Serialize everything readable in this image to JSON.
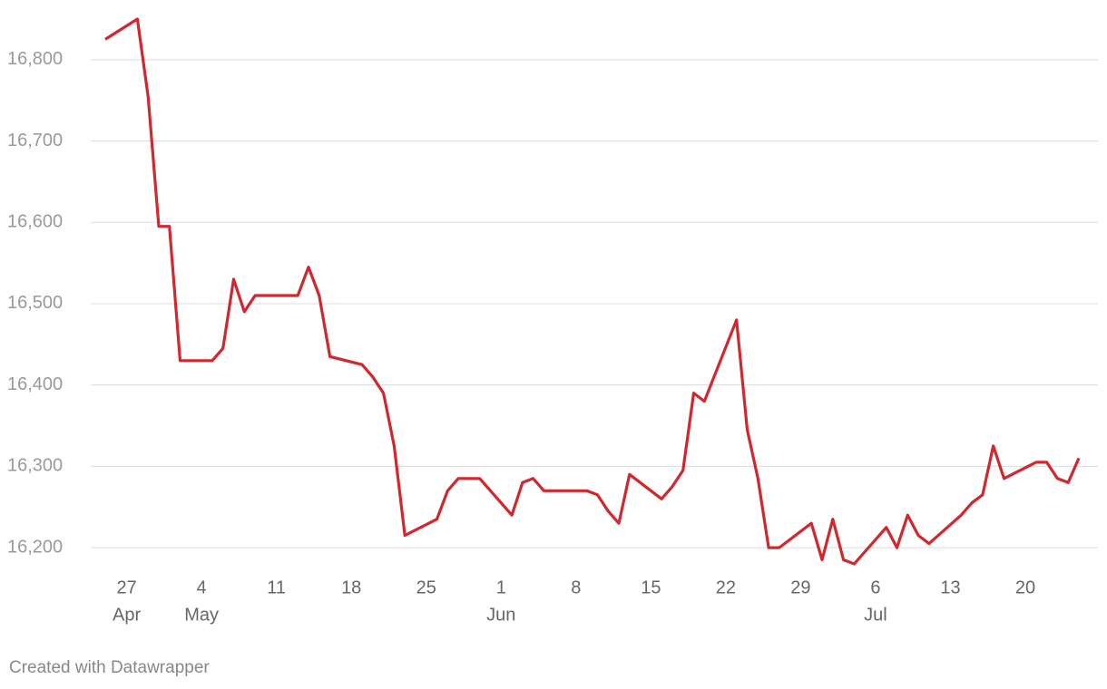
{
  "chart_data": {
    "type": "line",
    "color": "#d0282e",
    "grid": true,
    "x": [
      "04-25",
      "04-28",
      "04-29",
      "04-30",
      "05-01",
      "05-02",
      "05-05",
      "05-06",
      "05-07",
      "05-08",
      "05-09",
      "05-13",
      "05-14",
      "05-15",
      "05-16",
      "05-19",
      "05-20",
      "05-21",
      "05-22",
      "05-23",
      "05-26",
      "05-27",
      "05-28",
      "05-30",
      "06-02",
      "06-03",
      "06-04",
      "06-05",
      "06-09",
      "06-10",
      "06-11",
      "06-12",
      "06-13",
      "06-16",
      "06-17",
      "06-18",
      "06-19",
      "06-20",
      "06-23",
      "06-24",
      "06-25",
      "06-26",
      "06-27",
      "06-30",
      "07-01",
      "07-02",
      "07-03",
      "07-04",
      "07-07",
      "07-08",
      "07-09",
      "07-10",
      "07-11",
      "07-14",
      "07-15",
      "07-16",
      "07-17",
      "07-18",
      "07-21",
      "07-22",
      "07-23",
      "07-24",
      "07-25"
    ],
    "values": [
      16825,
      16850,
      16755,
      16595,
      16595,
      16430,
      16430,
      16445,
      16530,
      16490,
      16510,
      16510,
      16545,
      16510,
      16435,
      16425,
      16410,
      16390,
      16325,
      16215,
      16235,
      16270,
      16285,
      16285,
      16240,
      16280,
      16285,
      16270,
      16270,
      16265,
      16245,
      16230,
      16290,
      16260,
      16275,
      16295,
      16390,
      16380,
      16480,
      16345,
      16285,
      16200,
      16200,
      16230,
      16185,
      16235,
      16185,
      16180,
      16225,
      16200,
      16240,
      16215,
      16205,
      16240,
      16255,
      16265,
      16325,
      16285,
      16305,
      16305,
      16285,
      16280,
      16310
    ],
    "xlim": [
      "04-25",
      "07-25"
    ],
    "xticks": [
      {
        "value": "04-27",
        "label": "27",
        "month": "Apr"
      },
      {
        "value": "05-04",
        "label": "4",
        "month": "May"
      },
      {
        "value": "05-11",
        "label": "11"
      },
      {
        "value": "05-18",
        "label": "18"
      },
      {
        "value": "05-25",
        "label": "25"
      },
      {
        "value": "06-01",
        "label": "1",
        "month": "Jun"
      },
      {
        "value": "06-08",
        "label": "8"
      },
      {
        "value": "06-15",
        "label": "15"
      },
      {
        "value": "06-22",
        "label": "22"
      },
      {
        "value": "06-29",
        "label": "29"
      },
      {
        "value": "07-06",
        "label": "6",
        "month": "Jul"
      },
      {
        "value": "07-13",
        "label": "13"
      },
      {
        "value": "07-20",
        "label": "20"
      }
    ],
    "ylim": [
      16170,
      16860
    ],
    "yticks": [
      {
        "value": 16200,
        "label": "16,200"
      },
      {
        "value": 16300,
        "label": "16,300"
      },
      {
        "value": 16400,
        "label": "16,400"
      },
      {
        "value": 16500,
        "label": "16,500"
      },
      {
        "value": 16600,
        "label": "16,600"
      },
      {
        "value": 16700,
        "label": "16,700"
      },
      {
        "value": 16800,
        "label": "16,800"
      }
    ],
    "footer": "Created with Datawrapper"
  }
}
